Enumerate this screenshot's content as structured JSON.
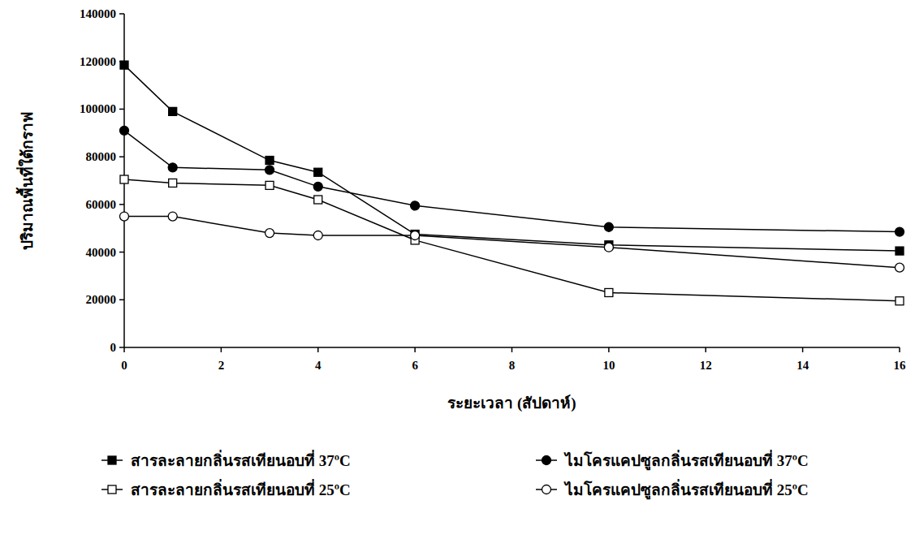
{
  "chart_data": {
    "type": "line",
    "x_label": "ระยะเวลา (สัปดาห์)",
    "y_label": "ปริมาณพื้นที่ใต้กราฟ",
    "x": [
      0,
      1,
      3,
      4,
      6,
      10,
      16
    ],
    "xlim": [
      0,
      16
    ],
    "xticks": [
      0,
      2,
      4,
      6,
      8,
      10,
      12,
      14,
      16
    ],
    "ylim": [
      0,
      140000
    ],
    "yticks": [
      0,
      20000,
      40000,
      60000,
      80000,
      100000,
      120000,
      140000
    ],
    "grid": false,
    "legend": "bottom",
    "series": [
      {
        "name": "สารละลายกลิ่นรสเทียนอบที่ 37ºC",
        "color": "#000000",
        "marker": "square",
        "line_style": "solid",
        "values": [
          118500,
          99000,
          78500,
          73500,
          47500,
          43000,
          40500
        ]
      },
      {
        "name": "สารละลายกลิ่นรสเทียนอบที่ 25ºC",
        "color": "#000000",
        "marker": "square-open",
        "line_style": "solid",
        "values": [
          70500,
          69000,
          68000,
          62000,
          45000,
          23000,
          19500
        ]
      },
      {
        "name": "ไมโครแคปซูลกลิ่นรสเทียนอบที่ 37ºC",
        "color": "#000000",
        "marker": "circle",
        "line_style": "solid",
        "values": [
          91000,
          75500,
          74500,
          67500,
          59500,
          50500,
          48500
        ]
      },
      {
        "name": "ไมโครแคปซูลกลิ่นรสเทียนอบที่ 25ºC",
        "color": "#000000",
        "marker": "circle-open",
        "line_style": "solid",
        "values": [
          55000,
          55000,
          48000,
          47000,
          47000,
          42000,
          33500
        ]
      }
    ]
  }
}
